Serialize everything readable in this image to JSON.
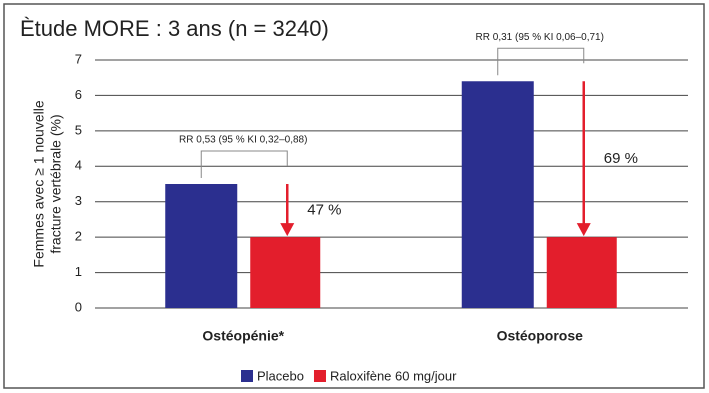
{
  "chart_data": {
    "type": "bar",
    "title": "Ètude MORE : 3 ans (n = 3240)",
    "y_label": [
      "Femmes avec ≥ 1 nouvelle",
      "fracture vertébrale (%)"
    ],
    "categories": [
      "Ostéopénie*",
      "Ostéoporose"
    ],
    "series": [
      {
        "name": "Placebo",
        "color": "#2b2f8f",
        "values": [
          3.5,
          6.4
        ]
      },
      {
        "name": "Raloxifène 60 mg/jour",
        "color": "#e31e2c",
        "values": [
          2.0,
          2.0
        ]
      }
    ],
    "annotations": [
      {
        "rr": "RR 0,53 (95 % KI 0,32–0,88)",
        "reduction": "47 %"
      },
      {
        "rr": "RR 0,31 (95 % KI 0,06–0,71)",
        "reduction": "69 %"
      }
    ],
    "ylim": [
      0,
      7
    ],
    "yticks": [
      0,
      1,
      2,
      3,
      4,
      5,
      6,
      7
    ],
    "grid": true,
    "legend": "bottom"
  }
}
